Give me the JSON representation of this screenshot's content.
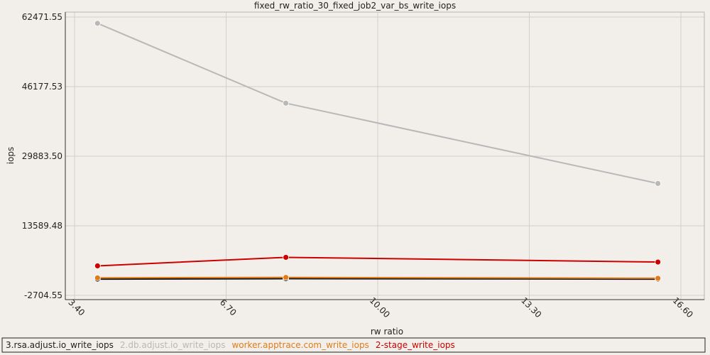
{
  "chart_data": {
    "type": "line",
    "title": "fixed_rw_ratio_30_fixed_job2_var_bs_write_iops",
    "xlabel": "rw ratio",
    "ylabel": "iops",
    "x_ticks": [
      "3.40",
      "6.70",
      "10.00",
      "13.30",
      "16.60"
    ],
    "y_ticks": [
      "-2704.55",
      "13589.48",
      "29883.50",
      "46177.53",
      "62471.55"
    ],
    "xlim": [
      3.4,
      16.6
    ],
    "ylim": [
      -2704.55,
      62471.55
    ],
    "grid": true,
    "legend_position": "bottom",
    "series": [
      {
        "name": "3.rsa.adjust.io_write_iops",
        "color": "#111111",
        "x": [
          3.9,
          8.0,
          16.1
        ],
        "y": [
          1100,
          1200,
          1100
        ]
      },
      {
        "name": "2.db.adjust.io_write_iops",
        "color": "#b8b8b8",
        "x": [
          3.9,
          8.0,
          16.1
        ],
        "y": [
          61000,
          42300,
          23500
        ]
      },
      {
        "name": "worker.apptrace.com_write_iops",
        "color": "#e07b1a",
        "x": [
          3.9,
          8.0,
          16.1
        ],
        "y": [
          1400,
          1500,
          1300
        ]
      },
      {
        "name": "2-stage_write_iops",
        "color": "#cc0000",
        "x": [
          3.9,
          8.0,
          16.1
        ],
        "y": [
          4200,
          6200,
          5100
        ]
      }
    ]
  }
}
